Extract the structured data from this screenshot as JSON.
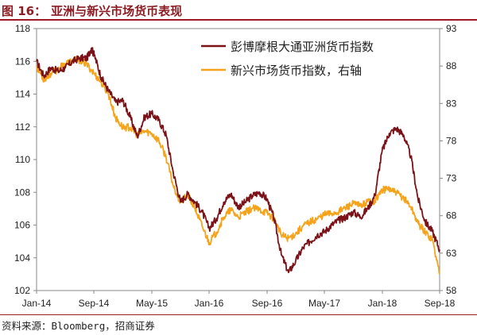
{
  "figure": {
    "label": "图 16：",
    "title": "亚洲与新兴市场货币表现",
    "source": "资料来源：Bloomberg，招商证券"
  },
  "colors": {
    "accent": "#9b1b24",
    "asia_series": "#7b1218",
    "em_series": "#f4a31a"
  },
  "chart_data": {
    "type": "line",
    "title": "亚洲与新兴市场货币表现",
    "x_tick_labels": [
      "Jan-14",
      "Sep-14",
      "May-15",
      "Jan-16",
      "Sep-16",
      "May-17",
      "Jan-18",
      "Sep-18"
    ],
    "x_range": [
      "2014-01",
      "2018-09"
    ],
    "left_axis": {
      "ylim": [
        102,
        118
      ],
      "ticks": [
        102,
        104,
        106,
        108,
        110,
        112,
        114,
        116,
        118
      ]
    },
    "right_axis": {
      "ylim": [
        58,
        93
      ],
      "ticks": [
        58,
        63,
        68,
        73,
        78,
        83,
        88,
        93
      ]
    },
    "grid": false,
    "legend_position": "top-right",
    "series": [
      {
        "name": "彭博摩根大通亚洲货币指数",
        "axis": "left",
        "color": "#7b1218",
        "points": [
          [
            "2014-01-01",
            116.0
          ],
          [
            "2014-02-01",
            115.1
          ],
          [
            "2014-03-01",
            115.6
          ],
          [
            "2014-04-01",
            115.4
          ],
          [
            "2014-05-01",
            115.6
          ],
          [
            "2014-06-01",
            116.0
          ],
          [
            "2014-07-01",
            116.2
          ],
          [
            "2014-08-01",
            116.2
          ],
          [
            "2014-08-20",
            116.8
          ],
          [
            "2014-09-01",
            116.4
          ],
          [
            "2014-10-01",
            115.0
          ],
          [
            "2014-11-01",
            114.2
          ],
          [
            "2014-12-01",
            113.5
          ],
          [
            "2015-01-01",
            113.6
          ],
          [
            "2015-02-01",
            112.6
          ],
          [
            "2015-03-01",
            111.4
          ],
          [
            "2015-04-01",
            112.6
          ],
          [
            "2015-05-01",
            112.8
          ],
          [
            "2015-06-01",
            112.4
          ],
          [
            "2015-07-01",
            111.5
          ],
          [
            "2015-08-01",
            109.2
          ],
          [
            "2015-09-01",
            107.4
          ],
          [
            "2015-10-01",
            107.9
          ],
          [
            "2015-11-01",
            107.4
          ],
          [
            "2015-12-01",
            106.8
          ],
          [
            "2016-01-01",
            105.8
          ],
          [
            "2016-02-01",
            106.4
          ],
          [
            "2016-03-01",
            107.4
          ],
          [
            "2016-04-01",
            107.9
          ],
          [
            "2016-05-01",
            107.1
          ],
          [
            "2016-06-01",
            107.4
          ],
          [
            "2016-07-01",
            107.8
          ],
          [
            "2016-08-01",
            108.0
          ],
          [
            "2016-09-01",
            107.6
          ],
          [
            "2016-10-01",
            106.4
          ],
          [
            "2016-11-01",
            104.2
          ],
          [
            "2016-12-01",
            103.1
          ],
          [
            "2017-01-01",
            103.8
          ],
          [
            "2017-02-01",
            104.6
          ],
          [
            "2017-03-01",
            105.0
          ],
          [
            "2017-04-01",
            105.4
          ],
          [
            "2017-05-01",
            105.6
          ],
          [
            "2017-06-01",
            106.0
          ],
          [
            "2017-07-01",
            106.3
          ],
          [
            "2017-08-01",
            106.5
          ],
          [
            "2017-09-01",
            106.8
          ],
          [
            "2017-10-01",
            106.5
          ],
          [
            "2017-11-01",
            107.0
          ],
          [
            "2017-12-01",
            107.8
          ],
          [
            "2018-01-01",
            110.5
          ],
          [
            "2018-02-01",
            111.6
          ],
          [
            "2018-03-01",
            111.9
          ],
          [
            "2018-04-01",
            111.5
          ],
          [
            "2018-05-01",
            110.2
          ],
          [
            "2018-06-01",
            107.6
          ],
          [
            "2018-07-01",
            106.2
          ],
          [
            "2018-08-01",
            105.6
          ],
          [
            "2018-09-01",
            104.5
          ]
        ]
      },
      {
        "name": "新兴市场货币指数，右轴",
        "axis": "right",
        "color": "#f4a31a",
        "points": [
          [
            "2014-01-01",
            88.0
          ],
          [
            "2014-02-01",
            86.2
          ],
          [
            "2014-03-01",
            87.0
          ],
          [
            "2014-04-01",
            87.6
          ],
          [
            "2014-05-01",
            88.3
          ],
          [
            "2014-06-01",
            88.7
          ],
          [
            "2014-07-01",
            88.8
          ],
          [
            "2014-08-01",
            88.2
          ],
          [
            "2014-09-01",
            87.0
          ],
          [
            "2014-10-01",
            85.8
          ],
          [
            "2014-11-01",
            84.2
          ],
          [
            "2014-12-01",
            81.0
          ],
          [
            "2015-01-01",
            79.8
          ],
          [
            "2015-02-01",
            79.8
          ],
          [
            "2015-03-01",
            78.8
          ],
          [
            "2015-04-01",
            79.3
          ],
          [
            "2015-05-01",
            79.0
          ],
          [
            "2015-06-01",
            78.0
          ],
          [
            "2015-07-01",
            75.8
          ],
          [
            "2015-08-01",
            72.0
          ],
          [
            "2015-09-01",
            69.8
          ],
          [
            "2015-10-01",
            70.8
          ],
          [
            "2015-11-01",
            69.0
          ],
          [
            "2015-12-01",
            66.6
          ],
          [
            "2016-01-01",
            64.4
          ],
          [
            "2016-02-01",
            65.8
          ],
          [
            "2016-03-01",
            67.8
          ],
          [
            "2016-04-01",
            68.8
          ],
          [
            "2016-05-01",
            67.8
          ],
          [
            "2016-06-01",
            68.4
          ],
          [
            "2016-07-01",
            69.0
          ],
          [
            "2016-08-01",
            68.8
          ],
          [
            "2016-09-01",
            68.4
          ],
          [
            "2016-10-01",
            67.6
          ],
          [
            "2016-11-01",
            65.4
          ],
          [
            "2016-12-01",
            65.0
          ],
          [
            "2017-01-01",
            65.6
          ],
          [
            "2017-02-01",
            66.6
          ],
          [
            "2017-03-01",
            67.2
          ],
          [
            "2017-04-01",
            67.6
          ],
          [
            "2017-05-01",
            68.2
          ],
          [
            "2017-06-01",
            68.3
          ],
          [
            "2017-07-01",
            68.6
          ],
          [
            "2017-08-01",
            69.1
          ],
          [
            "2017-09-01",
            69.6
          ],
          [
            "2017-10-01",
            69.3
          ],
          [
            "2017-11-01",
            69.9
          ],
          [
            "2017-12-01",
            70.0
          ],
          [
            "2018-01-01",
            71.4
          ],
          [
            "2018-02-01",
            71.6
          ],
          [
            "2018-03-01",
            71.0
          ],
          [
            "2018-04-01",
            70.4
          ],
          [
            "2018-05-01",
            69.2
          ],
          [
            "2018-06-01",
            67.0
          ],
          [
            "2018-07-01",
            65.8
          ],
          [
            "2018-08-01",
            64.8
          ],
          [
            "2018-09-01",
            60.2
          ]
        ]
      }
    ]
  }
}
